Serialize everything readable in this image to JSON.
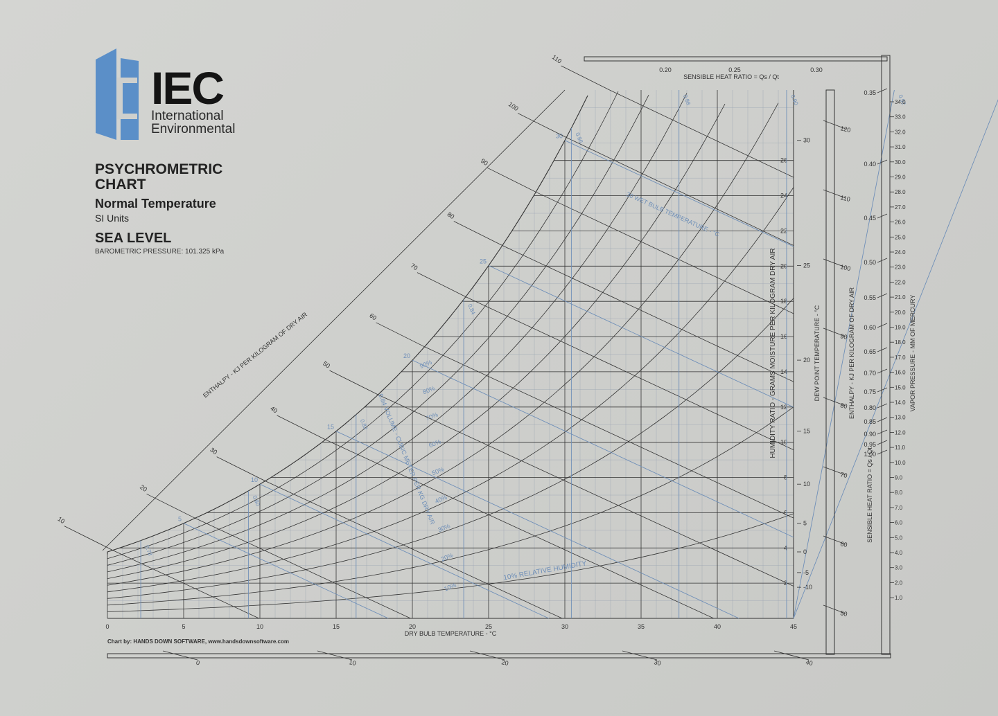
{
  "brand": {
    "name": "IEC",
    "line1": "International",
    "line2": "Environmental"
  },
  "heading": {
    "title": "PSYCHROMETRIC CHART",
    "subtitle": "Normal Temperature",
    "units": "SI Units",
    "altitude": "SEA LEVEL",
    "pressure": "BAROMETRIC PRESSURE: 101.325 kPa"
  },
  "credit": "Chart by: HANDS DOWN SOFTWARE, www.handsdownsoftware.com",
  "colors": {
    "grid": "#333333",
    "blue": "#6f8fb8",
    "logo": "#5b8fc8"
  },
  "chart_data": {
    "type": "psychrometric",
    "xlabel": "DRY BULB TEMPERATURE - °C",
    "x_ticks": [
      0,
      5,
      10,
      15,
      20,
      25,
      30,
      35,
      40,
      45
    ],
    "xlim": [
      0,
      45
    ],
    "ylabel": "HUMIDITY RATIO - GRAMS MOISTURE PER KILOGRAM DRY AIR",
    "w_ticks": [
      2,
      4,
      6,
      8,
      10,
      12,
      14,
      16,
      18,
      20,
      22,
      24,
      26
    ],
    "ylim": [
      0,
      30
    ],
    "dewpoint_label": "DEW POINT TEMPERATURE - °C",
    "dewpoint_ticks": [
      -10,
      -5,
      0,
      5,
      10,
      15,
      20,
      25,
      30
    ],
    "enthalpy_label": "ENTHALPY - KJ PER KILOGRAM OF DRY AIR",
    "enthalpy_ticks": [
      10,
      20,
      30,
      40,
      50,
      60,
      70,
      80,
      90,
      100,
      110
    ],
    "enthalpy_scale_label": "ENTHALPY - KJ PER KILOGRAM OF DRY AIR",
    "enthalpy_scale_ticks": [
      50,
      60,
      70,
      80,
      90,
      100,
      110,
      120
    ],
    "rh_label": "10% RELATIVE HUMIDITY",
    "rh_curves": [
      "10%",
      "20%",
      "30%",
      "40%",
      "50%",
      "60%",
      "70%",
      "80%",
      "90%"
    ],
    "rh_values": [
      10,
      20,
      30,
      40,
      50,
      60,
      70,
      80,
      90
    ],
    "wetbulb_label": "30 WET BULB TEMPERATURE - °C",
    "wetbulb_ticks": [
      5,
      10,
      15,
      20,
      25,
      30
    ],
    "volume_label": "0.84 VOLUME - CUBIC METER PER KG DRY AIR",
    "volume_ticks": [
      "0.78",
      "0.80",
      "0.82",
      "0.84",
      "0.86",
      "0.88",
      "0.90",
      "0.92",
      "0.94"
    ],
    "volume_values": [
      0.78,
      0.8,
      0.82,
      0.84,
      0.86,
      0.88,
      0.9,
      0.92,
      0.94
    ],
    "shr_top_label": "SENSIBLE HEAT RATIO = Qs / Qt",
    "shr_top_ticks": [
      "0.20",
      "0.25",
      "0.30"
    ],
    "shr_label": "SENSIBLE HEAT RATIO = Qs / Qt",
    "shr_ticks": [
      "0.35",
      "0.40",
      "0.45",
      "0.50",
      "0.55",
      "0.60",
      "0.65",
      "0.70",
      "0.75",
      "0.80",
      "0.85",
      "0.90",
      "0.95",
      "1.00"
    ],
    "vp_label": "VAPOR PRESSURE - MM OF MERCURY",
    "vp_ticks": [
      "34.0",
      "33.0",
      "32.0",
      "31.0",
      "30.0",
      "29.0",
      "28.0",
      "27.0",
      "26.0",
      "25.0",
      "24.0",
      "23.0",
      "22.0",
      "21.0",
      "20.0",
      "19.0",
      "18.0",
      "17.0",
      "16.0",
      "15.0",
      "14.0",
      "13.0",
      "12.0",
      "11.0",
      "10.0",
      "9.0",
      "8.0",
      "7.0",
      "6.0",
      "5.0",
      "4.0",
      "3.0",
      "2.0",
      "1.0"
    ],
    "bottom_ruler_ticks": [
      "0",
      "10",
      "20",
      "30",
      "40"
    ]
  }
}
